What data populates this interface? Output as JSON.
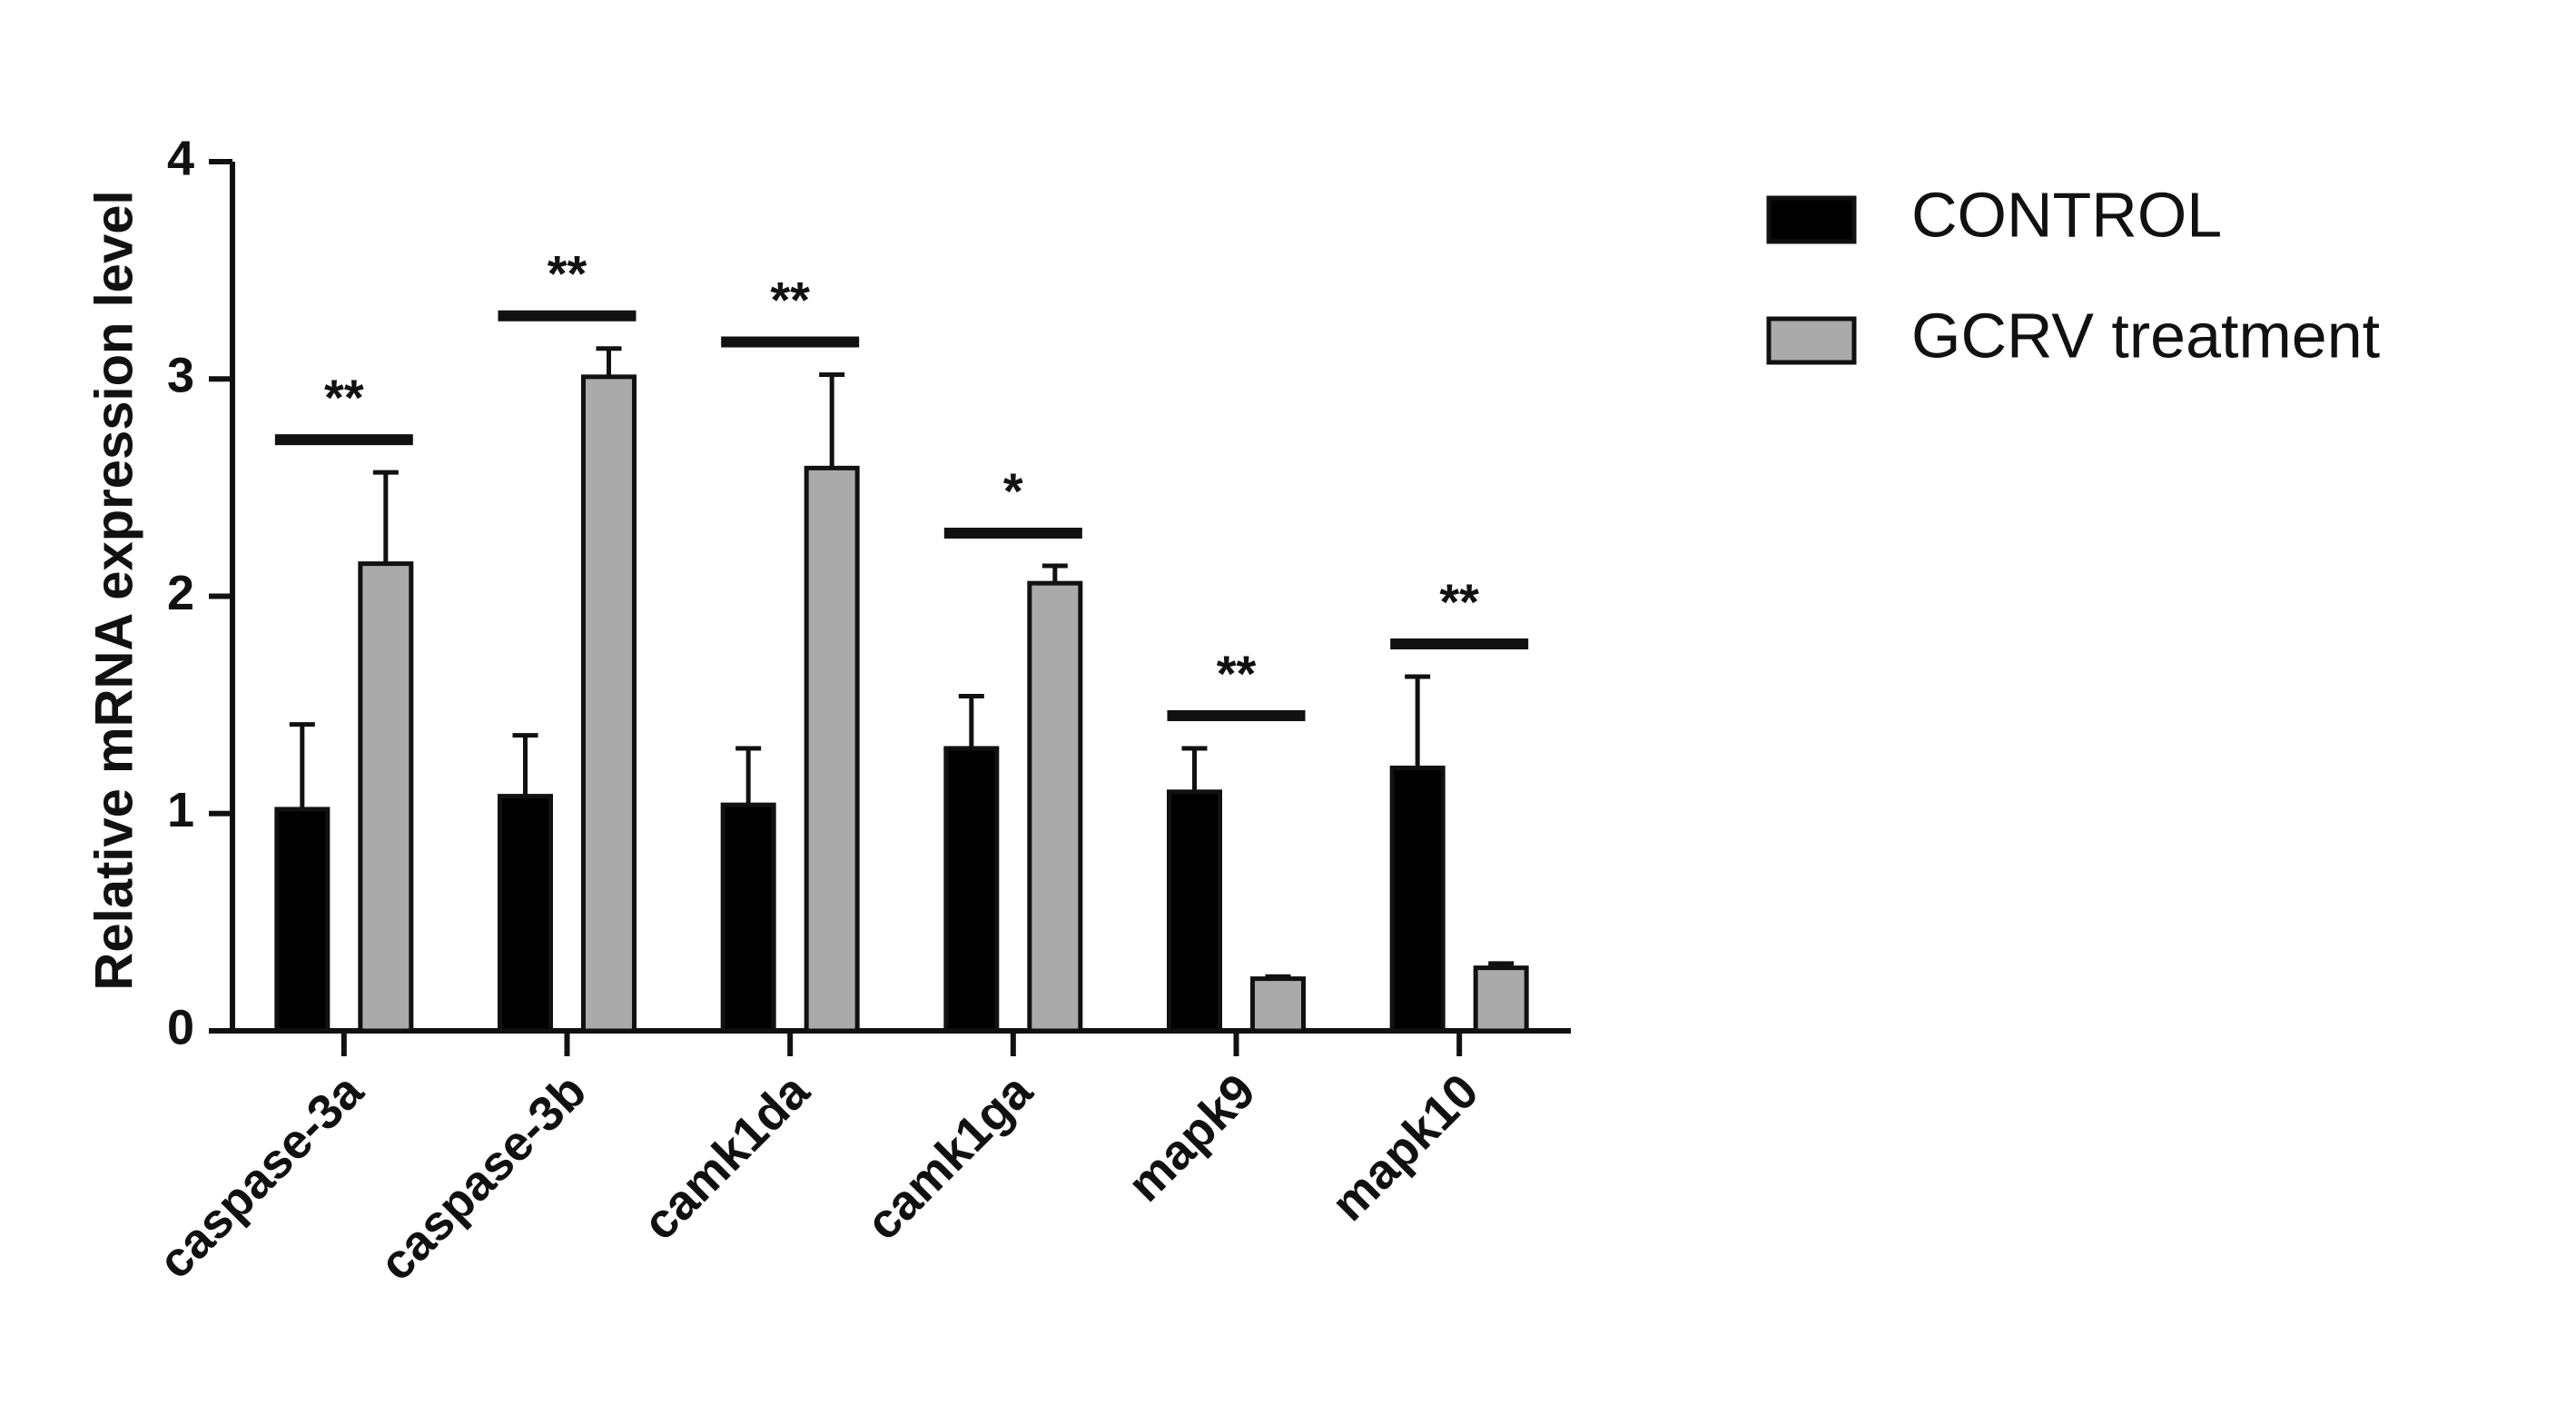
{
  "chart_data": {
    "type": "bar",
    "y_label": "Relative mRNA expression level",
    "categories": [
      "caspase-3a",
      "caspase-3b",
      "camk1da",
      "camk1ga",
      "mapk9",
      "mapk10"
    ],
    "series": [
      {
        "name": "CONTROL",
        "color": "#000000",
        "values": [
          1.02,
          1.08,
          1.04,
          1.3,
          1.1,
          1.21
        ],
        "errors": [
          0.39,
          0.28,
          0.26,
          0.24,
          0.2,
          0.42
        ]
      },
      {
        "name": "GCRV treatment",
        "color": "#aaaaaa",
        "values": [
          2.15,
          3.01,
          2.59,
          2.06,
          0.24,
          0.29
        ],
        "errors": [
          0.42,
          0.13,
          0.43,
          0.08,
          0.01,
          0.02
        ]
      }
    ],
    "annotations": [
      "**",
      "**",
      "**",
      "*",
      "**",
      "**"
    ],
    "ylim": [
      0,
      4
    ],
    "yticks": [
      0,
      1,
      2,
      3,
      4
    ],
    "grid": false,
    "legend": "upper right"
  }
}
